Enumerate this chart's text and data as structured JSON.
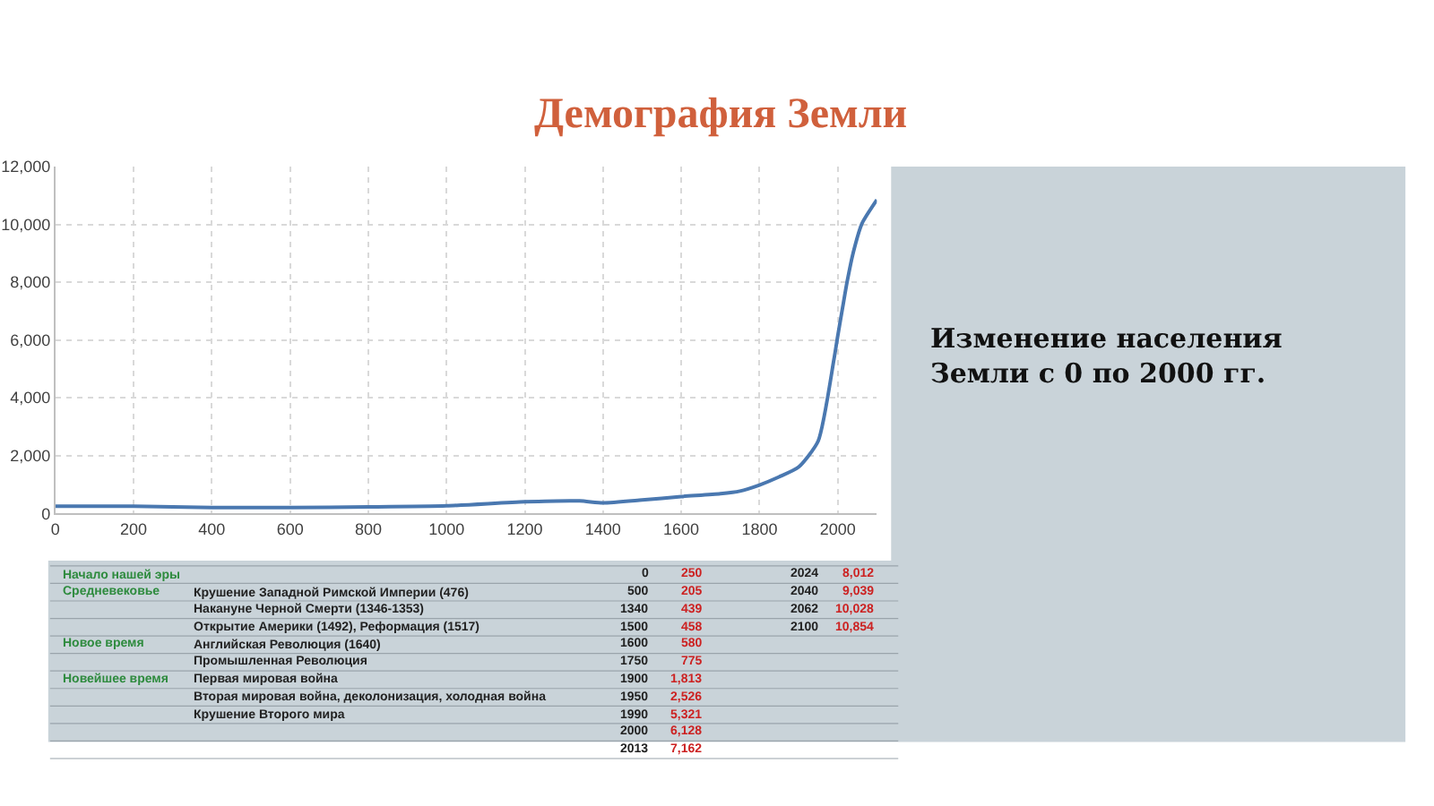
{
  "chart_data": [
    {
      "type": "line",
      "title": "Демография Земли",
      "x": [
        0,
        200,
        400,
        600,
        800,
        1000,
        1200,
        1340,
        1400,
        1500,
        1600,
        1700,
        1750,
        1800,
        1850,
        1900,
        1950,
        1990,
        2000,
        2013,
        2024,
        2040,
        2062,
        2100
      ],
      "series": [
        {
          "color": "#4a78b0",
          "values": [
            250,
            250,
            200,
            200,
            220,
            260,
            400,
            430,
            360,
            460,
            580,
            680,
            770,
            980,
            1260,
            1600,
            2500,
            5300,
            6130,
            7160,
            8010,
            9040,
            10030,
            10850
          ]
        }
      ],
      "xlim": [
        0,
        2100
      ],
      "xticks": [
        0,
        200,
        400,
        600,
        800,
        1000,
        1200,
        1400,
        1600,
        1800,
        2000
      ],
      "ylim": [
        0,
        12000
      ],
      "yticks": [
        {
          "value": 0,
          "label": "0"
        },
        {
          "value": 2000,
          "label": "2,000"
        },
        {
          "value": 4000,
          "label": "4,000"
        },
        {
          "value": 6000,
          "label": "6,000"
        },
        {
          "value": 8000,
          "label": "8,000"
        },
        {
          "value": 10000,
          "label": "10,000"
        },
        {
          "value": 12000,
          "label": "12,000"
        }
      ],
      "grid": true,
      "marker": "none",
      "line_style": "solid",
      "annotations": [
        "Изменение населения Земли с 0 по 2000 гг."
      ]
    },
    {
      "type": "other",
      "annotations": [
        "Начало нашей эры",
        "0",
        "250",
        "2024",
        "8,012",
        "Средневековье",
        "Крушение Западной Римской Империи (476)",
        "500",
        "205",
        "2040",
        "9,039",
        "Накануне Черной Смерти (1346-1353)",
        "1340",
        "439",
        "2062",
        "10,028",
        "Открытие Америки (1492), Реформация (1517)",
        "1500",
        "458",
        "2100",
        "10,854",
        "Новое время",
        "Английская Революция (1640)",
        "1600",
        "580",
        "Промышленная Революция",
        "1750",
        "775",
        "Новейшее время",
        "Первая мировая война",
        "1900",
        "1,813",
        "Вторая мировая война, деколонизация, холодная война",
        "1950",
        "2,526",
        "Крушение Второго мира",
        "1990",
        "5,321",
        "2000",
        "6,128",
        "2013",
        "7,162"
      ]
    }
  ]
}
